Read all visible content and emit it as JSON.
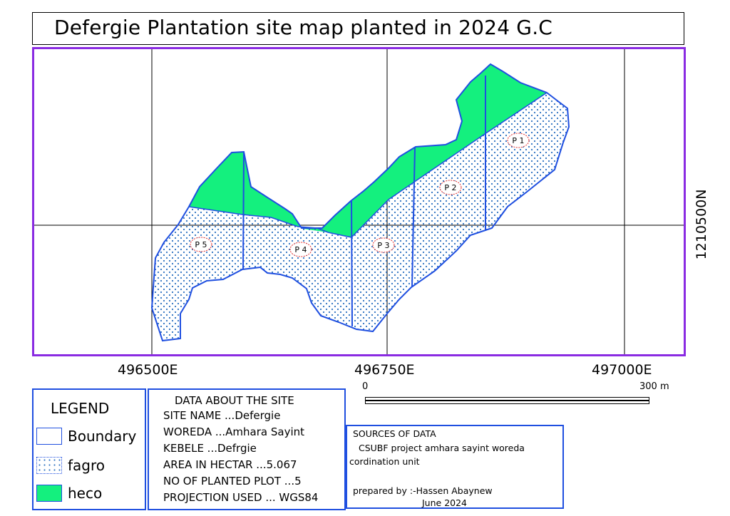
{
  "title": "Defergie Plantation site map planted in 2024 G.C",
  "colors": {
    "frame": "#8a2be2",
    "boundary": "#1f4fe0",
    "heco": "#14f07e",
    "fagro_dots": "#2a6fbf"
  },
  "coordinates": {
    "easting": [
      "496500E",
      "496750E",
      "497000E"
    ],
    "northing": [
      "1210500N"
    ]
  },
  "plots": [
    "P 1",
    "P 2",
    "P 3",
    "P 4",
    "P 5"
  ],
  "scale": {
    "start": "0",
    "end": "300 m"
  },
  "legend": {
    "title": "LEGEND",
    "items": [
      {
        "label": "Boundary",
        "icon": "boundary-swatch"
      },
      {
        "label": "fagro",
        "icon": "dotted-swatch"
      },
      {
        "label": "heco",
        "icon": "green-swatch"
      }
    ]
  },
  "site_data": {
    "title": "DATA ABOUT THE SITE",
    "lines": [
      "SITE NAME ...Defergie",
      "WOREDA ...Amhara Sayint",
      "KEBELE ...Defrgie",
      "AREA IN HECTAR ...5.067",
      "NO OF PLANTED PLOT ...5",
      "PROJECTION USED ... WGS84"
    ]
  },
  "sources": {
    "title": "SOURCES OF DATA",
    "line1": "CSUBF  project  amhara  sayint  woreda",
    "line2": "cordination unit",
    "prepared_by": "prepared by :-Hassen Abaynew",
    "date": "June 2024"
  }
}
